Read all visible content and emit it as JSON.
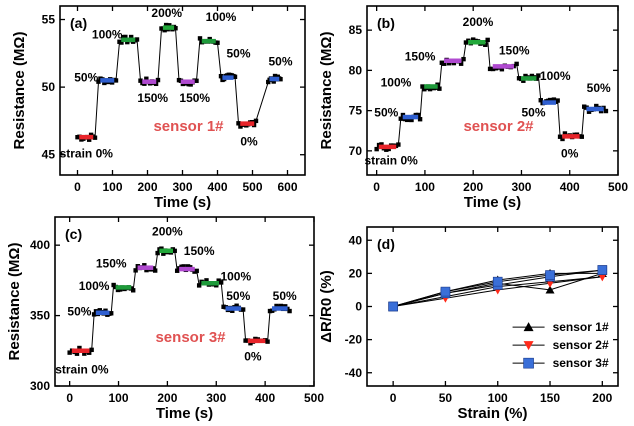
{
  "colors": {
    "strain": {
      "0%": "#e8242a",
      "50%": "#2f5fd0",
      "100%": "#1e9a3a",
      "150%": "#b04ad0",
      "200%": "#22a83a"
    },
    "sensor_label": "#e05252",
    "legend_series": [
      "#000000",
      "#ff2a1a",
      "#3a6fd8"
    ]
  },
  "chart_data": [
    {
      "panel": "(a)",
      "type": "line",
      "sensor_label": "sensor 1#",
      "xlabel": "Time (s)",
      "ylabel": "Resistance (MΩ)",
      "xlim": [
        -50,
        650
      ],
      "ylim": [
        43.5,
        56
      ],
      "xticks": [
        0,
        100,
        200,
        300,
        400,
        500,
        600
      ],
      "yticks": [
        45,
        50,
        55
      ],
      "steps": [
        {
          "x0": 0,
          "x1": 50,
          "y": 46.3,
          "strain": "0%"
        },
        {
          "x0": 60,
          "x1": 110,
          "y": 50.5,
          "strain": "50%"
        },
        {
          "x0": 120,
          "x1": 170,
          "y": 53.5,
          "strain": "100%"
        },
        {
          "x0": 180,
          "x1": 230,
          "y": 50.4,
          "strain": "150%"
        },
        {
          "x0": 240,
          "x1": 280,
          "y": 54.4,
          "strain": "200%"
        },
        {
          "x0": 290,
          "x1": 340,
          "y": 50.4,
          "strain": "150%"
        },
        {
          "x0": 350,
          "x1": 400,
          "y": 53.4,
          "strain": "100%"
        },
        {
          "x0": 410,
          "x1": 450,
          "y": 50.7,
          "strain": "50%"
        },
        {
          "x0": 460,
          "x1": 510,
          "y": 47.3,
          "strain": "0%"
        },
        {
          "x0": 545,
          "x1": 580,
          "y": 50.6,
          "strain": "50%"
        }
      ],
      "annotations": [
        {
          "text": "strain 0%",
          "x": 25,
          "y": 44.8
        },
        {
          "text": "50%",
          "x": 25,
          "y": 50.4
        },
        {
          "text": "100%",
          "x": 85,
          "y": 53.6
        },
        {
          "text": "200%",
          "x": 255,
          "y": 55.2
        },
        {
          "text": "100%",
          "x": 410,
          "y": 54.9
        },
        {
          "text": "150%",
          "x": 215,
          "y": 48.9
        },
        {
          "text": "150%",
          "x": 335,
          "y": 48.9
        },
        {
          "text": "50%",
          "x": 460,
          "y": 52.2
        },
        {
          "text": "0%",
          "x": 490,
          "y": 45.7
        },
        {
          "text": "50%",
          "x": 580,
          "y": 51.6
        }
      ]
    },
    {
      "panel": "(b)",
      "type": "line",
      "sensor_label": "sensor 2#",
      "xlabel": "Time (s)",
      "ylabel": "Resistance (MΩ)",
      "xlim": [
        -20,
        500
      ],
      "ylim": [
        67,
        88
      ],
      "xticks": [
        0,
        100,
        200,
        300,
        400,
        500
      ],
      "yticks": [
        70,
        75,
        80,
        85
      ],
      "steps": [
        {
          "x0": 0,
          "x1": 45,
          "y": 70.5,
          "strain": "0%"
        },
        {
          "x0": 50,
          "x1": 90,
          "y": 74.2,
          "strain": "50%"
        },
        {
          "x0": 95,
          "x1": 130,
          "y": 78,
          "strain": "100%"
        },
        {
          "x0": 135,
          "x1": 180,
          "y": 81.2,
          "strain": "150%"
        },
        {
          "x0": 185,
          "x1": 230,
          "y": 83.5,
          "strain": "200%"
        },
        {
          "x0": 235,
          "x1": 290,
          "y": 80.5,
          "strain": "150%"
        },
        {
          "x0": 295,
          "x1": 335,
          "y": 79,
          "strain": "100%"
        },
        {
          "x0": 340,
          "x1": 375,
          "y": 76,
          "strain": "50%"
        },
        {
          "x0": 380,
          "x1": 425,
          "y": 71.8,
          "strain": "0%"
        },
        {
          "x0": 430,
          "x1": 475,
          "y": 75.2,
          "strain": "50%"
        }
      ],
      "annotations": [
        {
          "text": "strain 0%",
          "x": 30,
          "y": 68.3
        },
        {
          "text": "50%",
          "x": 20,
          "y": 74.3
        },
        {
          "text": "100%",
          "x": 40,
          "y": 78
        },
        {
          "text": "150%",
          "x": 90,
          "y": 81.2
        },
        {
          "text": "200%",
          "x": 210,
          "y": 85.5
        },
        {
          "text": "150%",
          "x": 285,
          "y": 82
        },
        {
          "text": "100%",
          "x": 370,
          "y": 78.8
        },
        {
          "text": "50%",
          "x": 325,
          "y": 74.3
        },
        {
          "text": "0%",
          "x": 400,
          "y": 69.2
        },
        {
          "text": "50%",
          "x": 460,
          "y": 77.3
        }
      ]
    },
    {
      "panel": "(c)",
      "type": "line",
      "sensor_label": "sensor 3#",
      "xlabel": "Time (s)",
      "ylabel": "Resistance (MΩ)",
      "xlim": [
        -30,
        500
      ],
      "ylim": [
        300,
        420
      ],
      "xticks": [
        0,
        100,
        200,
        300,
        400,
        500
      ],
      "yticks": [
        300,
        350,
        400
      ],
      "steps": [
        {
          "x0": 0,
          "x1": 45,
          "y": 325,
          "strain": "0%"
        },
        {
          "x0": 50,
          "x1": 85,
          "y": 352,
          "strain": "50%"
        },
        {
          "x0": 90,
          "x1": 130,
          "y": 370,
          "strain": "100%"
        },
        {
          "x0": 135,
          "x1": 175,
          "y": 384,
          "strain": "150%"
        },
        {
          "x0": 180,
          "x1": 215,
          "y": 396,
          "strain": "200%"
        },
        {
          "x0": 220,
          "x1": 260,
          "y": 383,
          "strain": "150%"
        },
        {
          "x0": 265,
          "x1": 310,
          "y": 373,
          "strain": "100%"
        },
        {
          "x0": 315,
          "x1": 355,
          "y": 355,
          "strain": "50%"
        },
        {
          "x0": 360,
          "x1": 405,
          "y": 332,
          "strain": "0%"
        },
        {
          "x0": 410,
          "x1": 450,
          "y": 355,
          "strain": "50%"
        }
      ],
      "annotations": [
        {
          "text": "strain 0%",
          "x": 25,
          "y": 309
        },
        {
          "text": "50%",
          "x": 20,
          "y": 350
        },
        {
          "text": "100%",
          "x": 50,
          "y": 368
        },
        {
          "text": "150%",
          "x": 85,
          "y": 384
        },
        {
          "text": "200%",
          "x": 200,
          "y": 407
        },
        {
          "text": "150%",
          "x": 265,
          "y": 393
        },
        {
          "text": "100%",
          "x": 340,
          "y": 375
        },
        {
          "text": "50%",
          "x": 345,
          "y": 361
        },
        {
          "text": "0%",
          "x": 375,
          "y": 318
        },
        {
          "text": "50%",
          "x": 440,
          "y": 361
        }
      ]
    },
    {
      "panel": "(d)",
      "type": "line",
      "xlabel": "Strain (%)",
      "ylabel": "ΔR/R0 (%)",
      "xlim": [
        -25,
        215
      ],
      "ylim": [
        -48,
        48
      ],
      "xticks": [
        0,
        50,
        100,
        150,
        200
      ],
      "yticks": [
        -40,
        -20,
        0,
        20,
        40
      ],
      "x": [
        0,
        50,
        100,
        150,
        200
      ],
      "series": [
        {
          "name": "sensor 1#",
          "color": "#000000",
          "marker": "triangle-up",
          "forward": [
            0,
            8,
            14,
            10,
            20
          ],
          "back": [
            0,
            9,
            16,
            20,
            20
          ]
        },
        {
          "name": "sensor 2#",
          "color": "#ff2a1a",
          "marker": "triangle-down",
          "forward": [
            0,
            5,
            10,
            14,
            18
          ],
          "back": [
            0,
            6,
            12,
            15,
            18
          ]
        },
        {
          "name": "sensor 3#",
          "color": "#3a6fd8",
          "marker": "square",
          "forward": [
            0,
            8,
            13,
            18,
            22
          ],
          "back": [
            0,
            9,
            15,
            19,
            22
          ]
        }
      ]
    }
  ]
}
